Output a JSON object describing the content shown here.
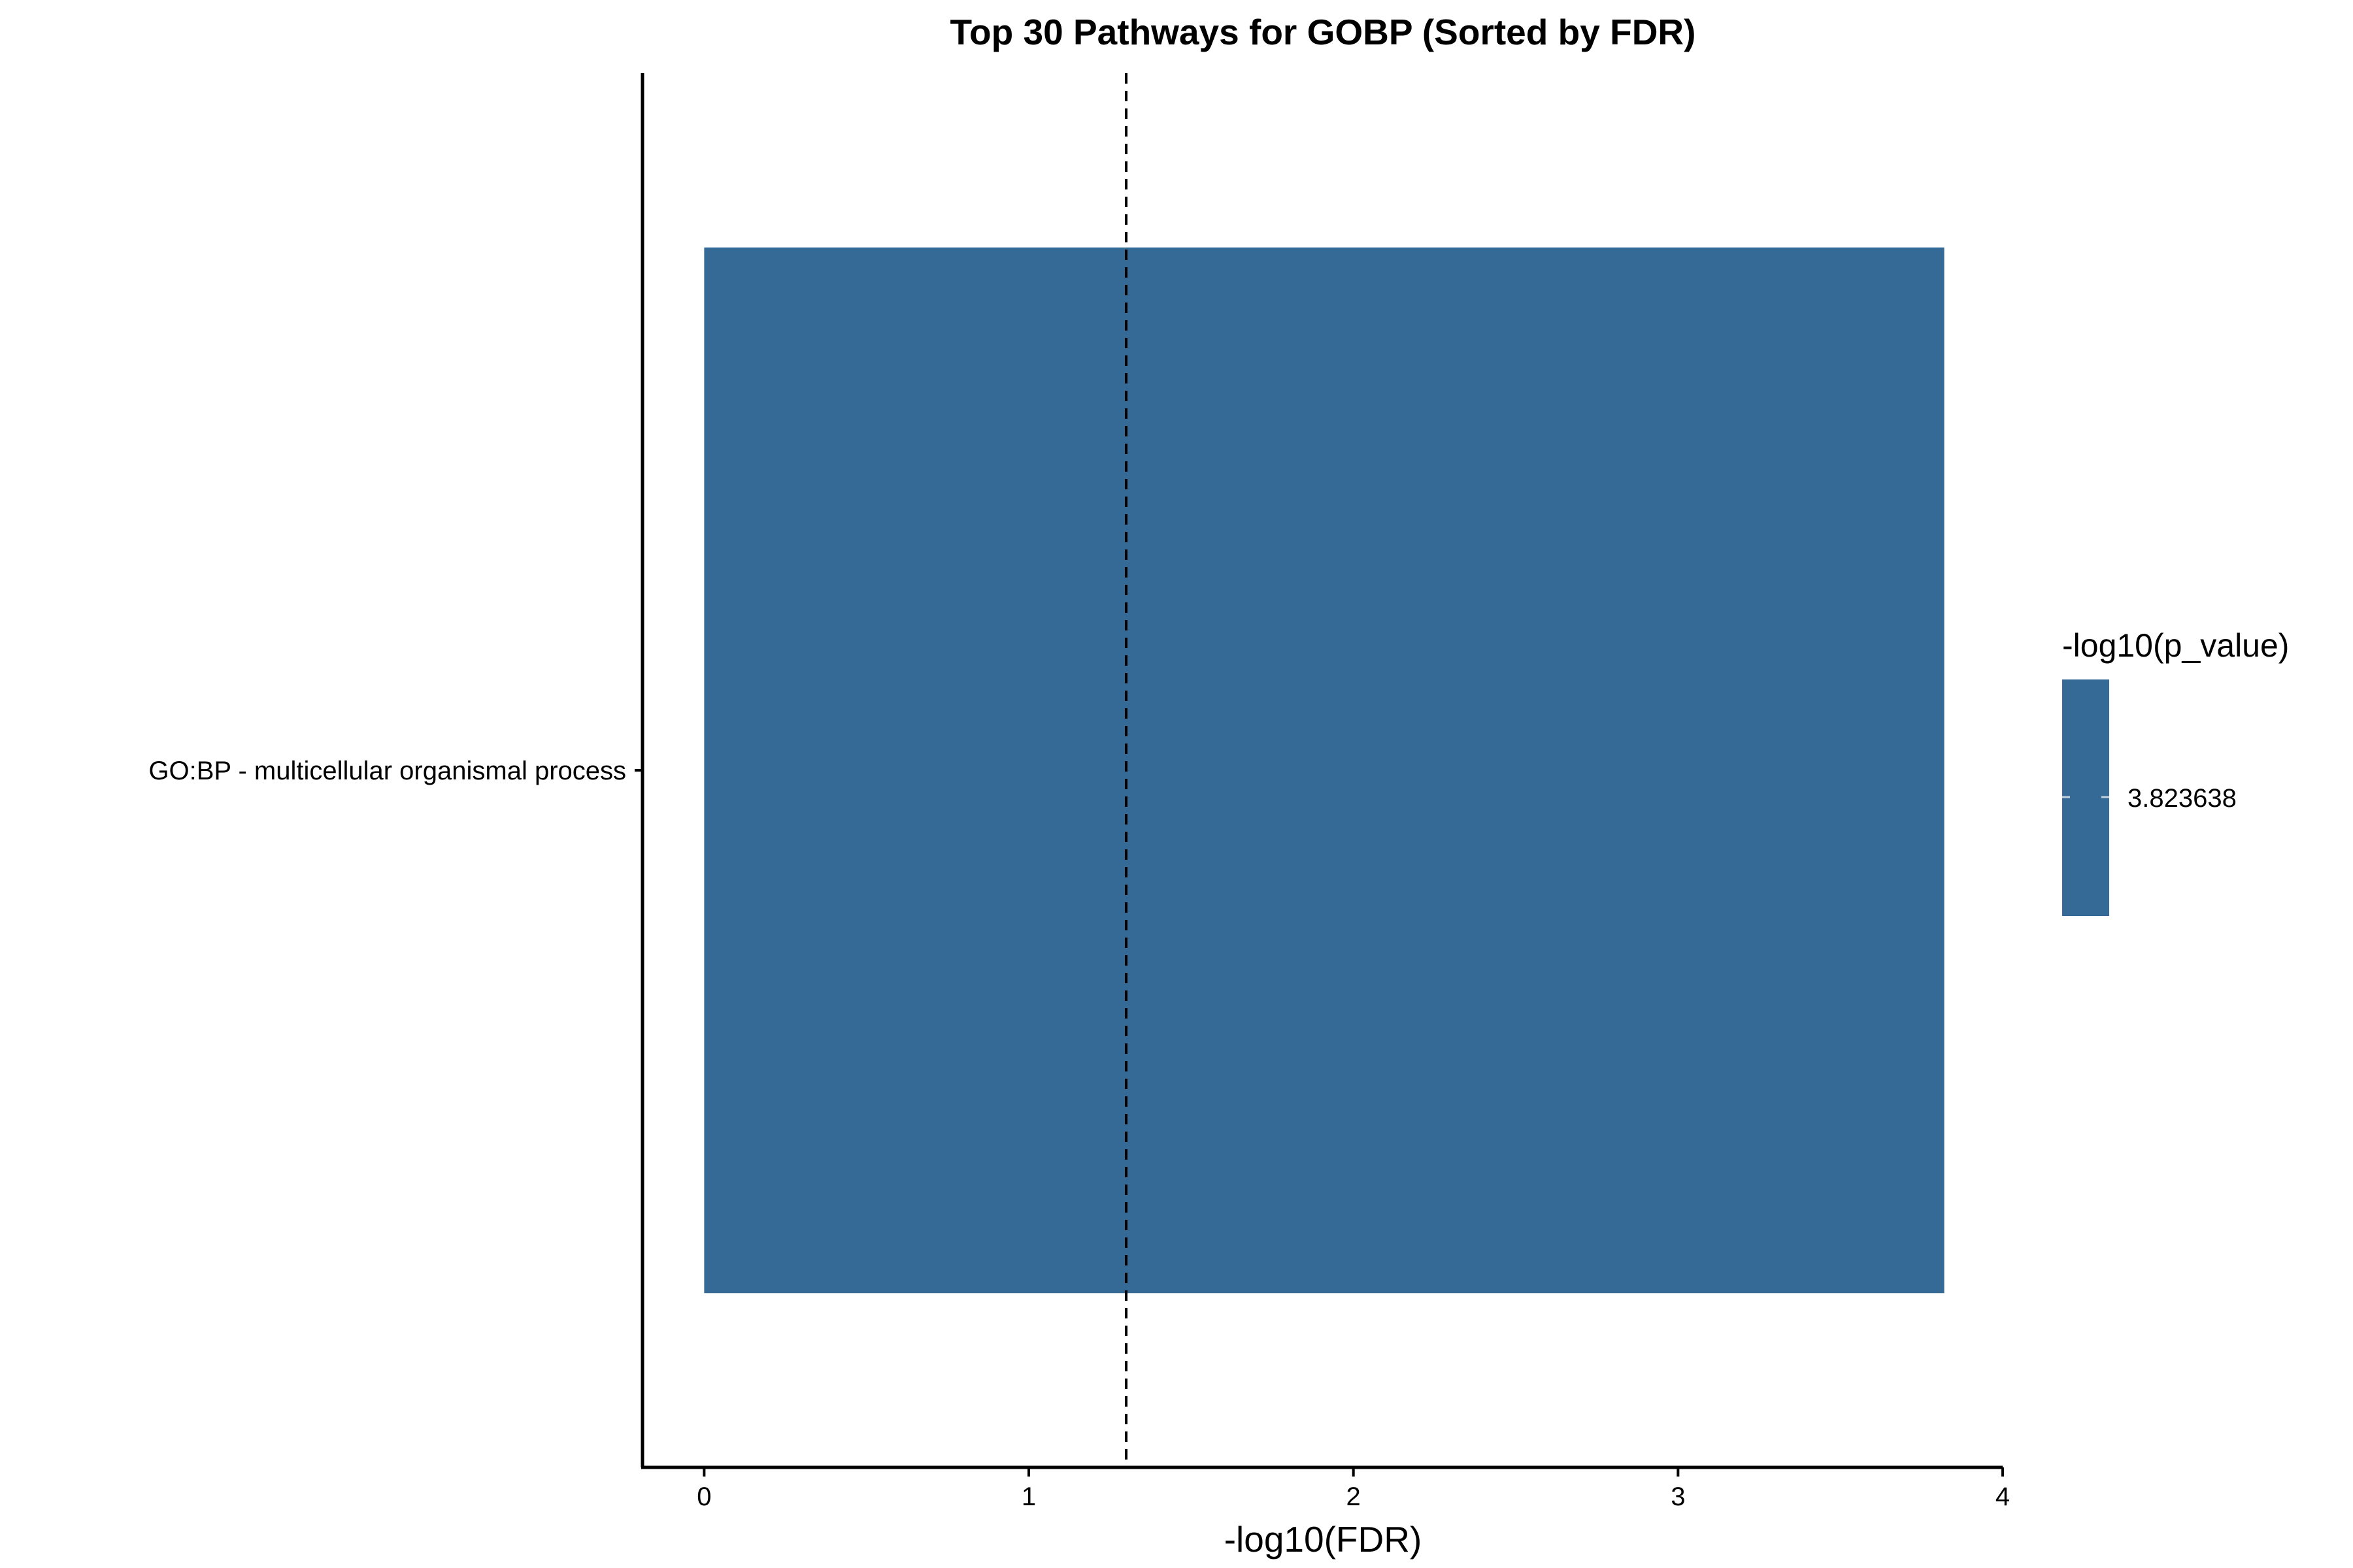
{
  "chart_data": {
    "type": "bar",
    "orientation": "horizontal",
    "title": "Top 30 Pathways for GOBP (Sorted by FDR)",
    "xlabel": "-log10(FDR)",
    "ylabel": "",
    "categories": [
      "GO:BP - multicellular organismal process"
    ],
    "values": [
      3.82
    ],
    "xlim": [
      -0.19,
      4.0
    ],
    "xticks": [
      0,
      1,
      2,
      3,
      4
    ],
    "xtick_labels": [
      "0",
      "1",
      "2",
      "3",
      "4"
    ],
    "reference_line": {
      "x": 1.3,
      "style": "dashed"
    },
    "bar_color": "#356a96",
    "grid": false,
    "legend": {
      "title": "-log10(p_value)",
      "labels": [
        "3.823638"
      ],
      "placement": "right"
    }
  }
}
